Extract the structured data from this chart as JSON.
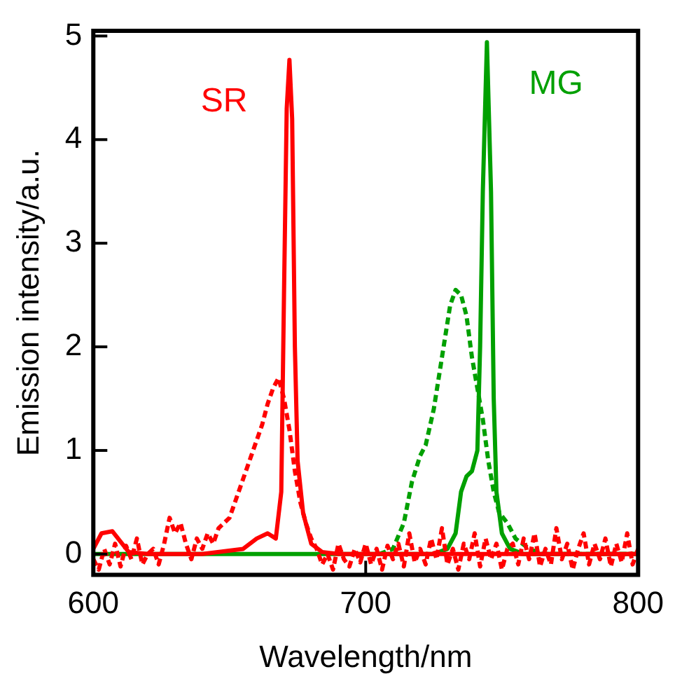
{
  "chart_data": {
    "type": "line",
    "xlabel": "Wavelength/nm",
    "ylabel": "Emission intensity/a.u.",
    "xlim": [
      600,
      800
    ],
    "ylim": [
      -0.2,
      5.05
    ],
    "xticks": [
      600,
      700,
      800
    ],
    "yticks": [
      0,
      1,
      2,
      3,
      4,
      5
    ],
    "grid": false,
    "legend": false,
    "marker": "none",
    "series": [
      {
        "name": "SR",
        "color": "#ff0000",
        "line_style": "solid",
        "x": [
          600,
          603,
          607,
          610,
          613,
          620,
          640,
          655,
          660,
          664,
          667,
          669,
          670,
          671,
          672,
          673,
          674,
          675,
          677,
          680,
          684,
          690,
          800
        ],
        "values": [
          0.05,
          0.2,
          0.22,
          0.12,
          0.02,
          0,
          0,
          0.05,
          0.15,
          0.2,
          0.15,
          0.6,
          2.5,
          4.3,
          4.77,
          4.2,
          2.0,
          0.9,
          0.4,
          0.1,
          0.02,
          0,
          0
        ]
      },
      {
        "color": "#ff0000",
        "line_style": "dashed",
        "x": [
          600,
          602,
          604,
          606,
          608,
          610,
          612,
          614,
          616,
          618,
          620,
          622,
          624,
          626,
          628,
          630,
          632,
          634,
          636,
          638,
          640,
          642,
          644,
          646,
          648,
          650,
          652,
          654,
          656,
          658,
          660,
          662,
          664,
          666,
          668,
          670,
          672,
          674,
          676,
          678,
          680,
          682,
          684,
          686,
          688,
          690,
          692,
          694,
          696,
          698,
          700,
          702,
          704,
          706,
          708,
          710,
          712,
          714,
          716,
          718,
          720,
          722,
          724,
          726,
          728,
          730,
          732,
          734,
          736,
          738,
          740,
          742,
          744,
          746,
          748,
          750,
          752,
          754,
          756,
          758,
          760,
          762,
          764,
          766,
          768,
          770,
          772,
          774,
          776,
          778,
          780,
          782,
          784,
          786,
          788,
          790,
          792,
          794,
          796,
          798,
          800
        ],
        "values": [
          -0.05,
          -0.15,
          0.05,
          -0.1,
          0.1,
          -0.12,
          0.08,
          -0.05,
          0.15,
          -0.1,
          0,
          0.05,
          -0.1,
          0.1,
          0.35,
          0.2,
          0.3,
          0.1,
          -0.05,
          0.15,
          0.05,
          0.2,
          0.1,
          0.25,
          0.3,
          0.35,
          0.5,
          0.65,
          0.8,
          0.95,
          1.1,
          1.25,
          1.45,
          1.6,
          1.7,
          1.5,
          1.2,
          0.8,
          0.5,
          0.3,
          0.15,
          0.05,
          -0.1,
          0,
          -0.15,
          0.1,
          -0.05,
          -0.12,
          0.05,
          -0.08,
          0.1,
          -0.1,
          0.05,
          -0.15,
          0.08,
          -0.05,
          0.1,
          -0.12,
          0.2,
          -0.08,
          0.05,
          -0.1,
          0.15,
          -0.05,
          0.25,
          -0.1,
          0.05,
          -0.15,
          0.1,
          -0.05,
          0.2,
          -0.12,
          0.15,
          -0.05,
          0.1,
          -0.15,
          0.05,
          0.1,
          -0.1,
          0.15,
          -0.05,
          0.2,
          -0.12,
          0.05,
          -0.1,
          0.25,
          -0.05,
          0.1,
          -0.15,
          0.05,
          0.2,
          -0.1,
          0.1,
          -0.05,
          0.15,
          -0.12,
          0.1,
          -0.08,
          0.2,
          -0.1,
          0.05
        ]
      },
      {
        "name": "MG",
        "color": "#00a000",
        "line_style": "solid",
        "x": [
          600,
          725,
          730,
          733,
          735,
          737,
          739,
          741,
          742,
          743,
          744.5,
          746,
          747,
          748,
          750,
          753,
          758,
          800
        ],
        "values": [
          0,
          0,
          0.05,
          0.2,
          0.6,
          0.75,
          0.8,
          1.0,
          2.0,
          3.5,
          4.94,
          3.5,
          1.5,
          0.6,
          0.2,
          0.05,
          0,
          0
        ]
      },
      {
        "color": "#00a000",
        "line_style": "dashed",
        "x": [
          705,
          710,
          714,
          717,
          720,
          722,
          725,
          728,
          731,
          733,
          735,
          737,
          739,
          741,
          743,
          745,
          747,
          749,
          752,
          755,
          760,
          765,
          800
        ],
        "values": [
          0,
          0.05,
          0.3,
          0.7,
          0.95,
          1.05,
          1.4,
          1.9,
          2.4,
          2.55,
          2.5,
          2.3,
          1.9,
          1.6,
          1.3,
          0.9,
          0.6,
          0.4,
          0.3,
          0.15,
          0.05,
          0,
          0
        ]
      }
    ]
  }
}
